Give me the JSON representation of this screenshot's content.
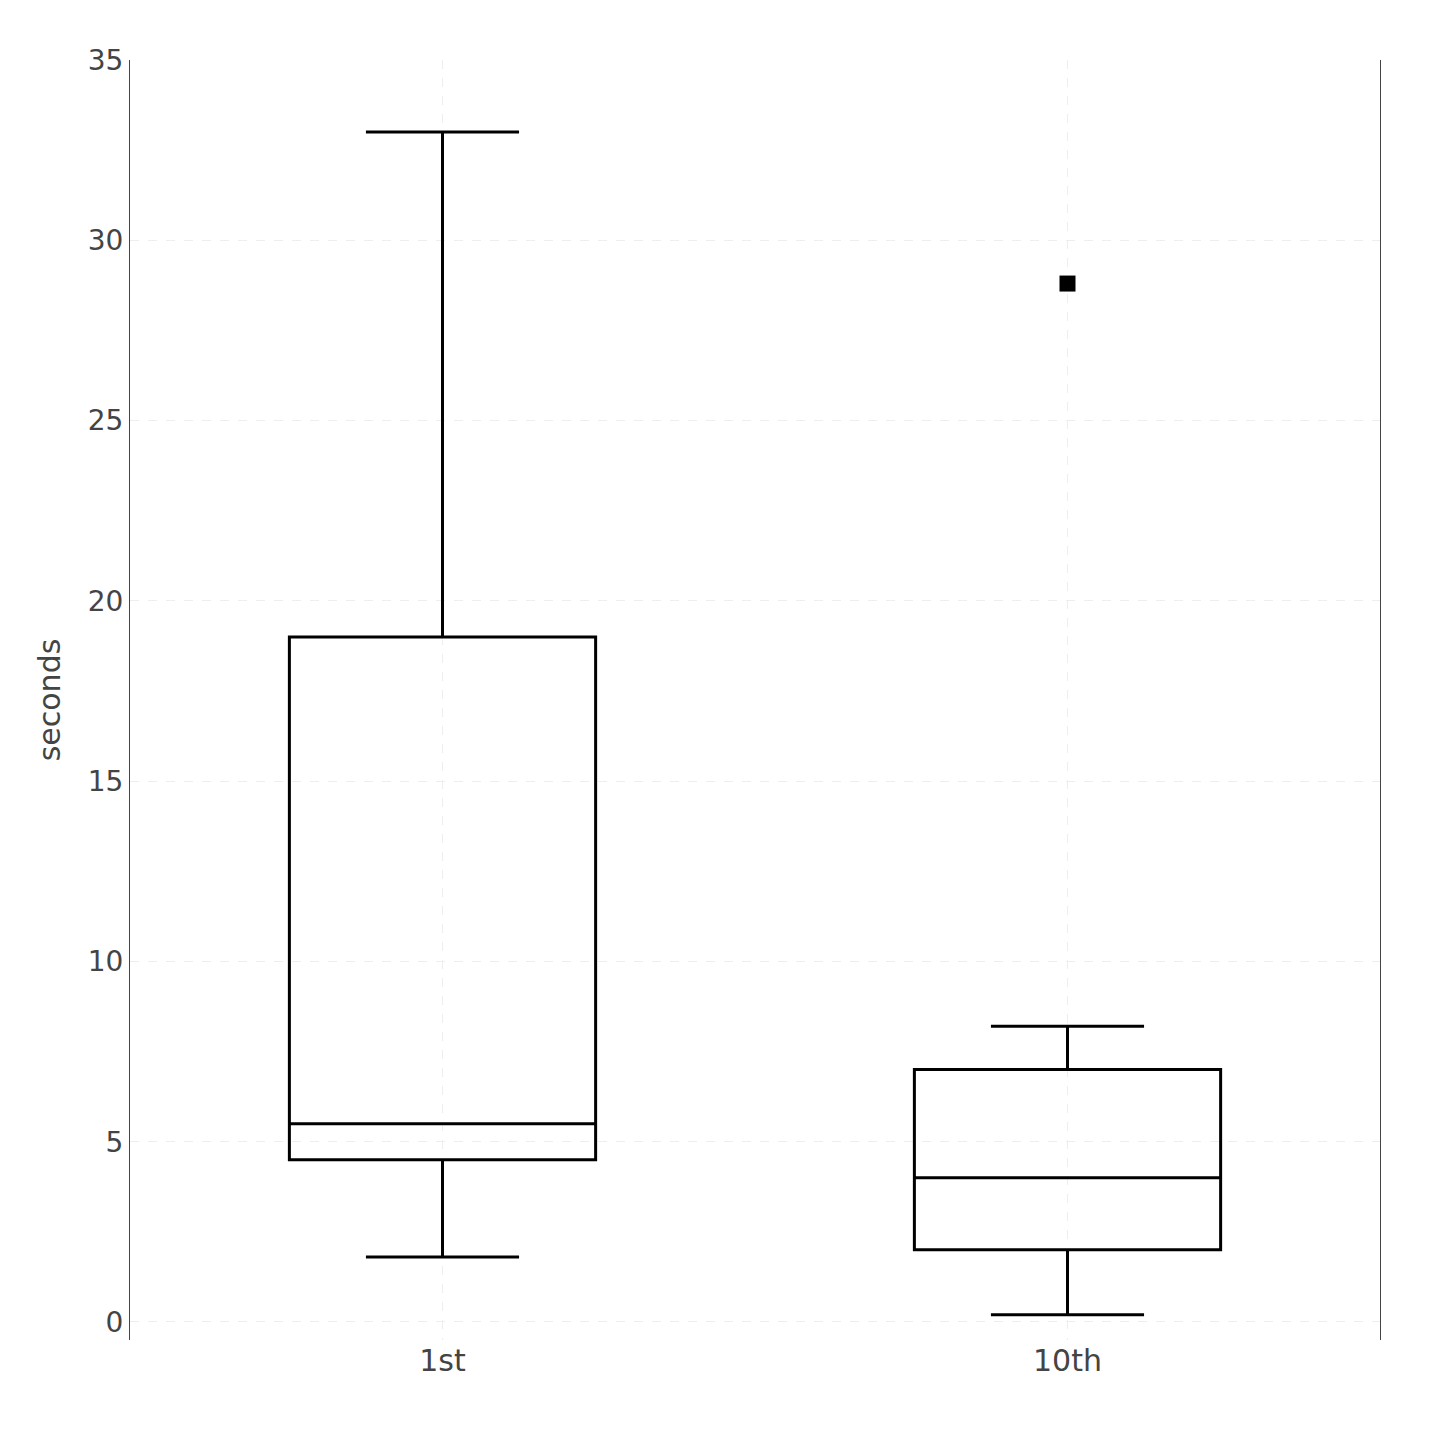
{
  "chart_data": {
    "type": "box",
    "categories": [
      "1st",
      "10th"
    ],
    "q1": [
      4.5,
      2.0
    ],
    "median": [
      5.5,
      4.0
    ],
    "q3": [
      19.0,
      7.0
    ],
    "whisker_low": [
      1.8,
      0.2
    ],
    "whisker_high": [
      33.0,
      8.2
    ],
    "fliers": [
      [],
      [
        28.8
      ]
    ],
    "ylabel": "seconds",
    "ylim": [
      -0.5,
      35
    ],
    "yticks": [
      0,
      5,
      10,
      15,
      20,
      25,
      30,
      35
    ],
    "grid": true,
    "color": "black",
    "marker": "square"
  }
}
